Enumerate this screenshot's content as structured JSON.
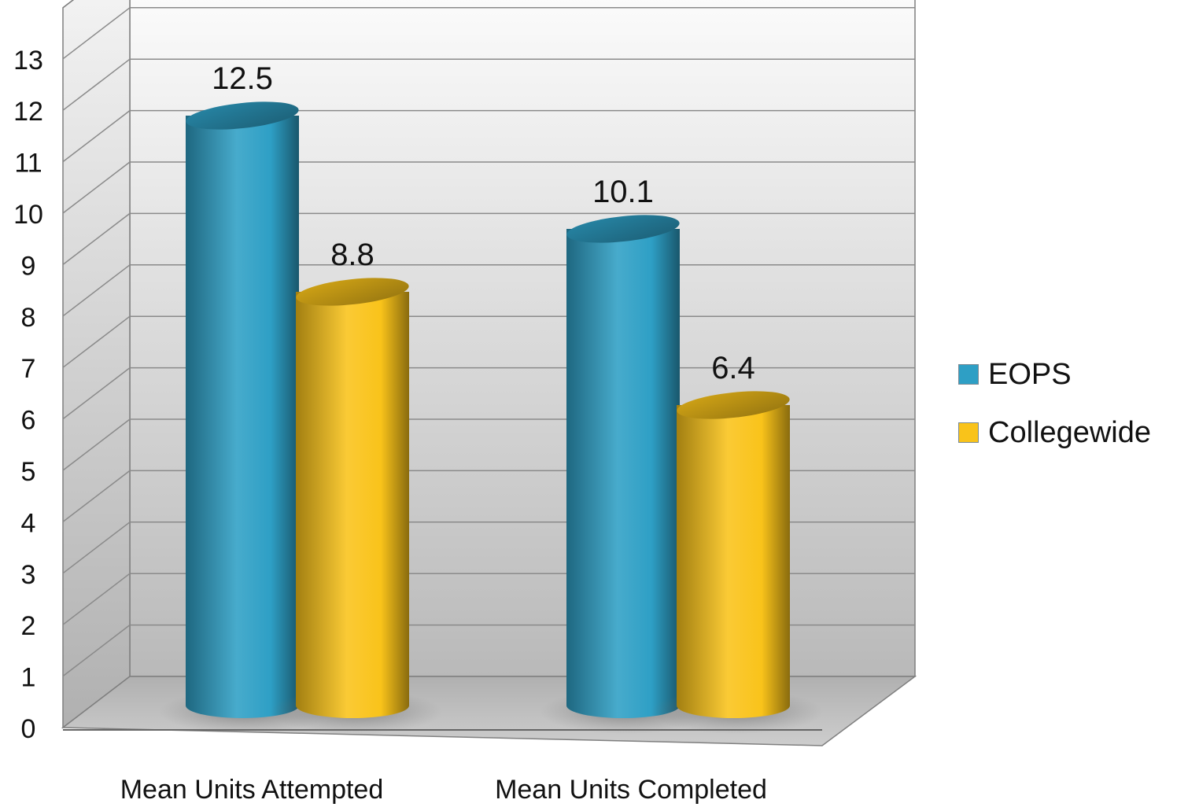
{
  "chart_data": {
    "type": "bar",
    "style": "3d-cylinder",
    "categories": [
      "Mean Units Attempted",
      "Mean Units Completed"
    ],
    "series": [
      {
        "name": "EOPS",
        "values": [
          12.5,
          10.1
        ],
        "labels": [
          "12.5",
          "10.1"
        ],
        "color": "#2E9FC5"
      },
      {
        "name": "Collegewide",
        "values": [
          8.8,
          6.4
        ],
        "labels": [
          "8.8",
          "6.4"
        ],
        "color": "#F9C31A"
      }
    ],
    "title": "",
    "xlabel": "",
    "ylabel": "",
    "ylim": [
      0,
      13
    ],
    "yticks": [
      0,
      1,
      2,
      3,
      4,
      5,
      6,
      7,
      8,
      9,
      10,
      11,
      12,
      13
    ],
    "grid": true,
    "legend_position": "right"
  }
}
